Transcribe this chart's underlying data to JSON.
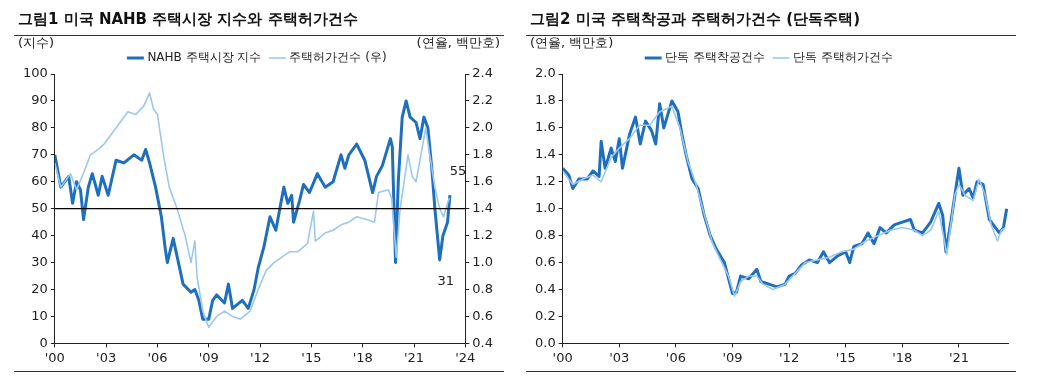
{
  "chart_data": [
    {
      "type": "line",
      "title": "그림1  미국 NAHB 주택시장 지수와 주택허가건수",
      "ylabel": "(지수)",
      "y2label": "(연율, 백만호)",
      "xlim": [
        2000,
        2024
      ],
      "xticks": [
        {
          "value": 2000,
          "label": "'00"
        },
        {
          "value": 2003,
          "label": "'03"
        },
        {
          "value": 2006,
          "label": "'06"
        },
        {
          "value": 2009,
          "label": "'09"
        },
        {
          "value": 2012,
          "label": "'12"
        },
        {
          "value": 2015,
          "label": "'15"
        },
        {
          "value": 2018,
          "label": "'18"
        },
        {
          "value": 2021,
          "label": "'21"
        },
        {
          "value": 2024,
          "label": "'24"
        }
      ],
      "ylim": [
        0,
        100
      ],
      "yticks": [
        0,
        10,
        20,
        30,
        40,
        50,
        60,
        70,
        80,
        90,
        100
      ],
      "y2lim": [
        0.4,
        2.4
      ],
      "y2ticks": [
        {
          "value": 0.4,
          "label": "0.4"
        },
        {
          "value": 0.6,
          "label": "0.6"
        },
        {
          "value": 0.8,
          "label": "0.8"
        },
        {
          "value": 1.0,
          "label": "1.0"
        },
        {
          "value": 1.2,
          "label": "1.2"
        },
        {
          "value": 1.4,
          "label": "1.4"
        },
        {
          "value": 1.6,
          "label": "1.6"
        },
        {
          "value": 1.8,
          "label": "1.8"
        },
        {
          "value": 2.0,
          "label": "2.0"
        },
        {
          "value": 2.2,
          "label": "2.2"
        },
        {
          "value": 2.4,
          "label": "2.4"
        }
      ],
      "grid": false,
      "legend": "top",
      "marker": "none",
      "line_style": "solid",
      "ref_lines": [
        {
          "axis": "y",
          "value": 50,
          "color": "#000000"
        }
      ],
      "annotations": [
        {
          "text": "55",
          "x": 2023.1,
          "y": 55
        },
        {
          "text": "31",
          "x": 2022.5,
          "y": 31
        }
      ],
      "series": [
        {
          "name": "NAHB 주택시장 지수",
          "color": "#1f6fbf",
          "x": [
            2000,
            2000.35,
            2000.81,
            2001.04,
            2001.27,
            2001.5,
            2001.68,
            2001.96,
            2002.19,
            2002.54,
            2002.77,
            2003.12,
            2003.58,
            2004.04,
            2004.62,
            2005.08,
            2005.31,
            2005.54,
            2005.89,
            2006.23,
            2006.46,
            2006.58,
            2006.92,
            2007.5,
            2007.96,
            2008.19,
            2008.42,
            2008.65,
            2009,
            2009.23,
            2009.46,
            2009.92,
            2010.15,
            2010.39,
            2010.96,
            2011.31,
            2011.65,
            2011.89,
            2012.23,
            2012.58,
            2012.92,
            2013.39,
            2013.62,
            2013.85,
            2013.96,
            2014.31,
            2014.54,
            2014.89,
            2015.35,
            2015.81,
            2016.27,
            2016.73,
            2016.96,
            2017.19,
            2017.65,
            2018.12,
            2018.58,
            2018.81,
            2019.15,
            2019.62,
            2019.73,
            2019.92,
            2020.08,
            2020.31,
            2020.54,
            2020.77,
            2021.12,
            2021.35,
            2021.58,
            2021.81,
            2022.04,
            2022.22,
            2022.5,
            2022.69,
            2022.96,
            2023.1
          ],
          "values": [
            70,
            58,
            62,
            52,
            60,
            57,
            46,
            58,
            63,
            55,
            62,
            55,
            68,
            67,
            70,
            68,
            72,
            67,
            58,
            47,
            35,
            30,
            39,
            22,
            19,
            20,
            16,
            9,
            9,
            16,
            18,
            15,
            22,
            13,
            16,
            13,
            20,
            28,
            36,
            47,
            42,
            58,
            52,
            55,
            45,
            53,
            59,
            56,
            63,
            58,
            60,
            70,
            65,
            70,
            74,
            68,
            56,
            62,
            66,
            76,
            73,
            30,
            60,
            84,
            90,
            84,
            82,
            76,
            84,
            80,
            65,
            50,
            31,
            40,
            45,
            55
          ]
        },
        {
          "name": "주택허가건수 (우)",
          "color": "#9cc8ee",
          "axis": "y2",
          "x": [
            2000,
            2000.35,
            2000.92,
            2001.27,
            2001.73,
            2002.08,
            2002.54,
            2002.88,
            2003.35,
            2003.81,
            2004.27,
            2004.73,
            2005.19,
            2005.54,
            2005.77,
            2006,
            2006.35,
            2006.69,
            2007.15,
            2007.62,
            2007.96,
            2008.19,
            2008.31,
            2008.65,
            2009,
            2009.46,
            2009.92,
            2010.39,
            2010.85,
            2011.42,
            2011.89,
            2012.35,
            2012.81,
            2013.27,
            2013.73,
            2014.19,
            2014.77,
            2015.12,
            2015.23,
            2015.81,
            2016.27,
            2016.73,
            2017.19,
            2017.65,
            2018.23,
            2018.69,
            2018.92,
            2019.5,
            2019.69,
            2019.96,
            2020.19,
            2020.42,
            2020.65,
            2020.89,
            2021.12,
            2021.46,
            2021.69,
            2021.92,
            2022.22,
            2022.5,
            2022.73,
            2022.96,
            2023.08
          ],
          "values": [
            1.74,
            1.56,
            1.66,
            1.54,
            1.68,
            1.8,
            1.84,
            1.88,
            1.96,
            2.04,
            2.12,
            2.1,
            2.16,
            2.26,
            2.14,
            2.1,
            1.8,
            1.56,
            1.4,
            1.2,
            1.0,
            1.16,
            0.9,
            0.64,
            0.52,
            0.6,
            0.64,
            0.6,
            0.58,
            0.64,
            0.8,
            0.94,
            1.0,
            1.04,
            1.08,
            1.08,
            1.14,
            1.38,
            1.16,
            1.22,
            1.24,
            1.28,
            1.3,
            1.34,
            1.32,
            1.3,
            1.52,
            1.54,
            1.48,
            1.04,
            1.4,
            1.6,
            1.8,
            1.64,
            1.6,
            1.84,
            2.0,
            1.8,
            1.56,
            1.4,
            1.34,
            1.44,
            1.48
          ]
        }
      ]
    },
    {
      "type": "line",
      "title": "그림2  미국 주택착공과 주택허가건수 (단독주택)",
      "ylabel": "(연율, 백만호)",
      "xlim": [
        2000,
        2023.6
      ],
      "xticks": [
        {
          "value": 2000,
          "label": "'00"
        },
        {
          "value": 2003,
          "label": "'03"
        },
        {
          "value": 2006,
          "label": "'06"
        },
        {
          "value": 2009,
          "label": "'09"
        },
        {
          "value": 2012,
          "label": "'12"
        },
        {
          "value": 2015,
          "label": "'15"
        },
        {
          "value": 2018,
          "label": "'18"
        },
        {
          "value": 2021,
          "label": "'21"
        }
      ],
      "ylim": [
        0,
        2.0
      ],
      "yticks": [
        {
          "value": 0,
          "label": "0.0"
        },
        {
          "value": 0.2,
          "label": "0.2"
        },
        {
          "value": 0.4,
          "label": "0.4"
        },
        {
          "value": 0.6,
          "label": "0.6"
        },
        {
          "value": 0.8,
          "label": "0.8"
        },
        {
          "value": 1.0,
          "label": "1.0"
        },
        {
          "value": 1.2,
          "label": "1.2"
        },
        {
          "value": 1.4,
          "label": "1.4"
        },
        {
          "value": 1.6,
          "label": "1.6"
        },
        {
          "value": 1.8,
          "label": "1.8"
        },
        {
          "value": 2.0,
          "label": "2.0"
        }
      ],
      "grid": false,
      "legend": "top",
      "marker": "none",
      "line_style": "solid",
      "series": [
        {
          "name": "단독 주택착공건수",
          "color": "#1f6fbf",
          "x": [
            2000,
            2000.32,
            2000.54,
            2000.86,
            2001.29,
            2001.61,
            2001.93,
            2002.04,
            2002.25,
            2002.57,
            2002.79,
            2003,
            2003.17,
            2003.54,
            2003.86,
            2004.11,
            2004.39,
            2004.71,
            2004.93,
            2005.14,
            2005.36,
            2005.79,
            2006.11,
            2006.32,
            2006.54,
            2006.86,
            2007.18,
            2007.5,
            2007.82,
            2008.14,
            2008.57,
            2009,
            2009.21,
            2009.43,
            2009.86,
            2010.29,
            2010.5,
            2010.93,
            2011.36,
            2011.79,
            2012,
            2012.32,
            2012.64,
            2013.07,
            2013.5,
            2013.82,
            2014.14,
            2014.57,
            2015,
            2015.21,
            2015.43,
            2015.86,
            2016.18,
            2016.5,
            2016.82,
            2017.14,
            2017.57,
            2018,
            2018.43,
            2018.64,
            2019.07,
            2019.5,
            2019.93,
            2020.14,
            2020.31,
            2020.57,
            2020.89,
            2021,
            2021.21,
            2021.54,
            2021.75,
            2021.96,
            2022.28,
            2022.61,
            2022.93,
            2023.14,
            2023.36,
            2023.53
          ],
          "values": [
            1.3,
            1.25,
            1.15,
            1.22,
            1.22,
            1.28,
            1.24,
            1.5,
            1.3,
            1.45,
            1.35,
            1.52,
            1.3,
            1.55,
            1.68,
            1.48,
            1.65,
            1.58,
            1.48,
            1.78,
            1.6,
            1.8,
            1.72,
            1.55,
            1.4,
            1.22,
            1.15,
            0.95,
            0.8,
            0.7,
            0.6,
            0.37,
            0.38,
            0.5,
            0.48,
            0.55,
            0.46,
            0.44,
            0.42,
            0.44,
            0.5,
            0.52,
            0.58,
            0.62,
            0.6,
            0.68,
            0.6,
            0.65,
            0.68,
            0.6,
            0.72,
            0.74,
            0.82,
            0.74,
            0.86,
            0.82,
            0.88,
            0.9,
            0.92,
            0.84,
            0.82,
            0.9,
            1.04,
            0.95,
            0.68,
            0.9,
            1.2,
            1.3,
            1.1,
            1.15,
            1.08,
            1.2,
            1.18,
            0.92,
            0.86,
            0.82,
            0.86,
            1.0
          ]
        },
        {
          "name": "단독 주택허가건수",
          "color": "#9cc8ee",
          "x": [
            2000,
            2000.54,
            2001.07,
            2001.61,
            2002.04,
            2002.57,
            2003,
            2003.54,
            2004.07,
            2004.61,
            2005.14,
            2005.79,
            2006.21,
            2006.64,
            2007.07,
            2007.5,
            2007.93,
            2008.36,
            2008.79,
            2009.11,
            2009.43,
            2009.86,
            2010.29,
            2010.61,
            2011.14,
            2011.79,
            2012.32,
            2012.86,
            2013.5,
            2014.14,
            2014.79,
            2015.43,
            2016.07,
            2016.71,
            2017.36,
            2018,
            2018.64,
            2019.07,
            2019.5,
            2019.93,
            2020.36,
            2020.78,
            2021,
            2021.32,
            2021.75,
            2022.07,
            2022.39,
            2022.71,
            2023.04,
            2023.25,
            2023.46
          ],
          "values": [
            1.28,
            1.18,
            1.22,
            1.25,
            1.2,
            1.38,
            1.45,
            1.52,
            1.62,
            1.62,
            1.72,
            1.76,
            1.6,
            1.35,
            1.18,
            0.96,
            0.75,
            0.62,
            0.5,
            0.35,
            0.46,
            0.5,
            0.5,
            0.44,
            0.4,
            0.44,
            0.52,
            0.6,
            0.62,
            0.64,
            0.68,
            0.7,
            0.76,
            0.8,
            0.84,
            0.86,
            0.84,
            0.8,
            0.84,
            0.98,
            0.66,
            1.1,
            1.18,
            1.1,
            1.06,
            1.22,
            1.1,
            0.88,
            0.76,
            0.84,
            0.86
          ]
        }
      ]
    }
  ]
}
